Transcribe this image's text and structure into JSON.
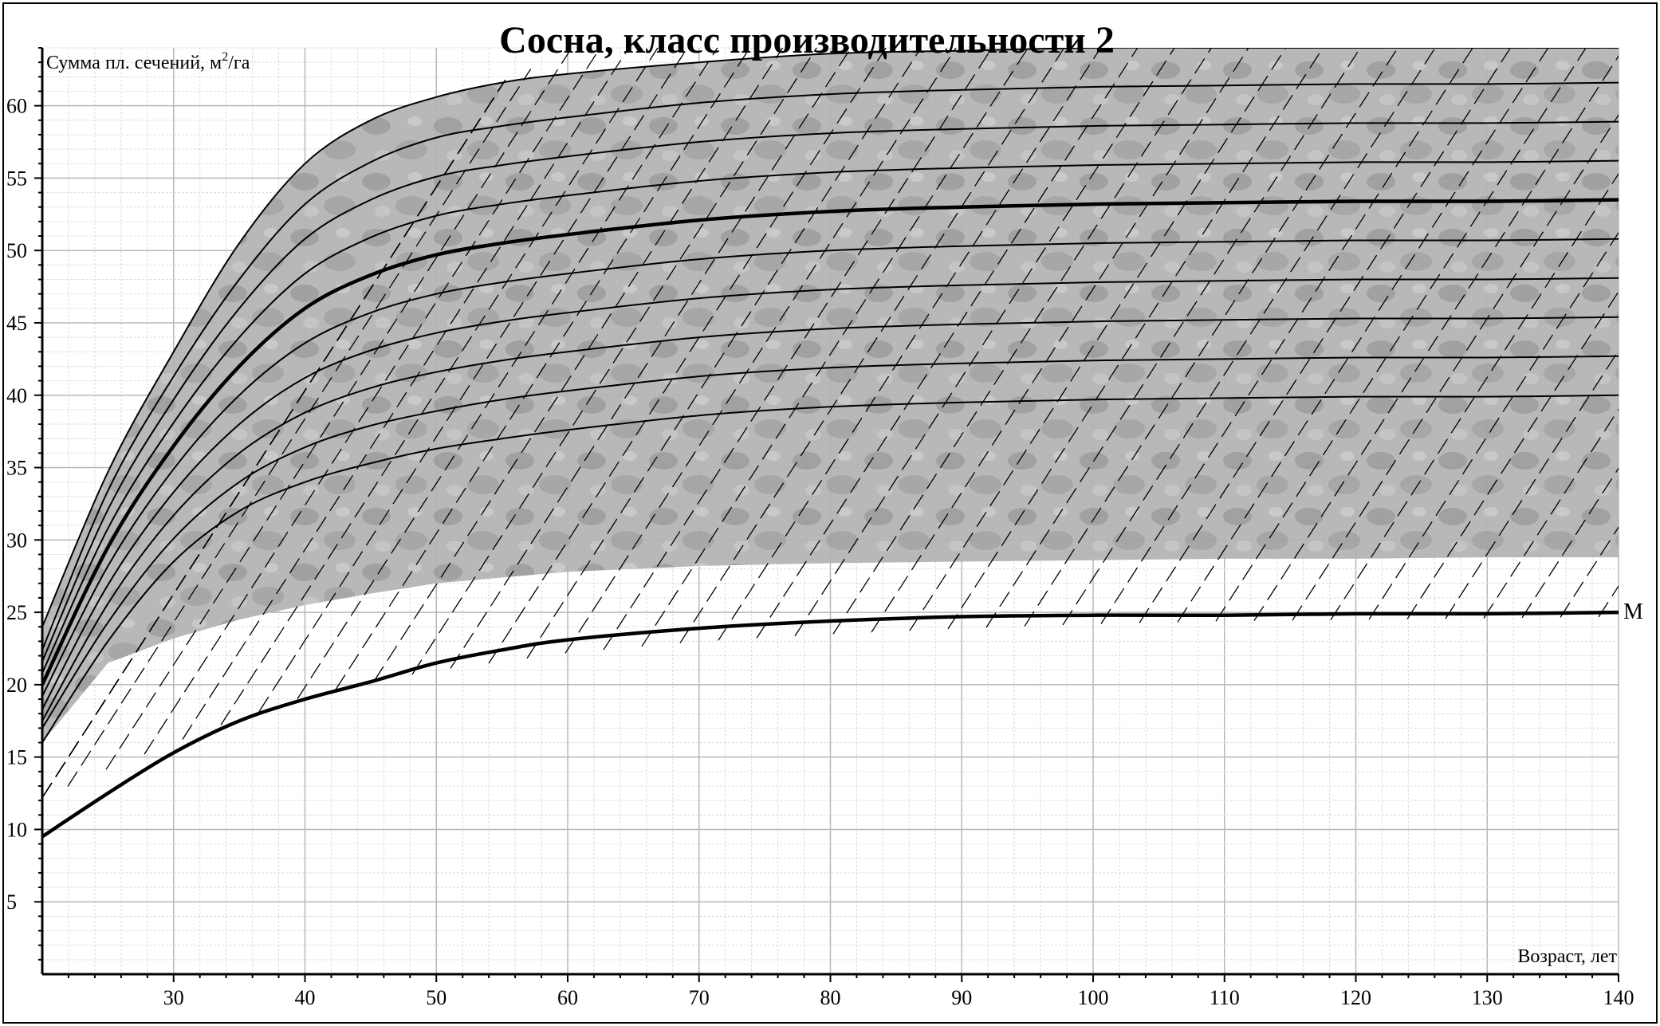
{
  "chart_data": {
    "type": "line",
    "title": "Сосна, класс производительности 2",
    "ylabel": "Сумма пл. сечений, м",
    "ylabel_sup": "2",
    "ylabel_suffix": "/га",
    "xlabel": "Возраст, лет",
    "xlim": [
      20,
      140
    ],
    "ylim": [
      0,
      64
    ],
    "x_ticks": [
      30,
      40,
      50,
      60,
      70,
      80,
      90,
      100,
      110,
      120,
      130,
      140
    ],
    "y_ticks": [
      5,
      10,
      15,
      20,
      25,
      30,
      35,
      40,
      45,
      50,
      55,
      60
    ],
    "grid": true,
    "x": [
      20,
      25,
      30,
      35,
      40,
      45,
      50,
      55,
      60,
      70,
      80,
      90,
      100,
      110,
      120,
      130,
      140
    ],
    "series": [
      {
        "values": [
          16.0,
          23.0,
          28.5,
          32.0,
          34.0,
          35.3,
          36.3,
          37.0,
          37.6,
          38.6,
          39.2,
          39.5,
          39.7,
          39.8,
          39.9,
          39.9,
          40.0
        ]
      },
      {
        "values": [
          17.0,
          24.3,
          30.1,
          34.0,
          36.4,
          37.9,
          38.9,
          39.7,
          40.3,
          41.3,
          41.9,
          42.2,
          42.4,
          42.5,
          42.6,
          42.6,
          42.7
        ]
      },
      {
        "values": [
          17.5,
          25.6,
          31.7,
          36.0,
          38.8,
          40.5,
          41.6,
          42.4,
          43.0,
          44.0,
          44.6,
          44.9,
          45.1,
          45.2,
          45.3,
          45.3,
          45.4
        ]
      },
      {
        "values": [
          18.3,
          26.9,
          33.3,
          38.0,
          41.2,
          43.1,
          44.3,
          45.1,
          45.7,
          46.7,
          47.3,
          47.6,
          47.8,
          47.9,
          48.0,
          48.0,
          48.1
        ]
      },
      {
        "values": [
          19.2,
          28.2,
          34.9,
          40.0,
          43.6,
          45.7,
          47.0,
          47.8,
          48.4,
          49.4,
          50.0,
          50.3,
          50.5,
          50.6,
          50.7,
          50.7,
          50.8
        ]
      },
      {
        "name": "",
        "values": [
          20.0,
          29.5,
          36.5,
          42.0,
          46.0,
          48.3,
          49.7,
          50.5,
          51.1,
          52.1,
          52.7,
          53.0,
          53.2,
          53.3,
          53.4,
          53.4,
          53.5
        ]
      },
      {
        "values": [
          20.8,
          30.8,
          38.1,
          44.0,
          48.4,
          50.9,
          52.4,
          53.2,
          53.8,
          54.8,
          55.4,
          55.7,
          55.9,
          56.0,
          56.1,
          56.1,
          56.2
        ]
      },
      {
        "values": [
          21.6,
          32.1,
          39.7,
          46.0,
          50.8,
          53.5,
          55.1,
          55.9,
          56.5,
          57.5,
          58.1,
          58.4,
          58.6,
          58.7,
          58.8,
          58.8,
          58.9
        ]
      },
      {
        "values": [
          22.4,
          33.4,
          41.3,
          48.0,
          53.2,
          56.1,
          57.8,
          58.6,
          59.2,
          60.2,
          60.8,
          61.1,
          61.3,
          61.4,
          61.5,
          61.5,
          61.6
        ]
      },
      {
        "name": "",
        "values": [
          24.0,
          34.7,
          43.0,
          50.5,
          56.0,
          59.0,
          60.6,
          61.6,
          62.2,
          63.0,
          63.6,
          63.8,
          64.0,
          64.0,
          64.0,
          64.0,
          64.0
        ]
      },
      {
        "name": "M",
        "values": [
          9.5,
          12.5,
          15.3,
          17.5,
          19.0,
          20.2,
          21.5,
          22.4,
          23.1,
          23.9,
          24.4,
          24.7,
          24.8,
          24.8,
          24.9,
          24.9,
          25.0
        ]
      }
    ],
    "shaded_band": {
      "lower": [
        16.0,
        21.5,
        23.2,
        24.5,
        25.5,
        26.3,
        27.0,
        27.4,
        27.8,
        28.2,
        28.4,
        28.5,
        28.6,
        28.7,
        28.7,
        28.8,
        28.8
      ],
      "upper": [
        24.0,
        34.7,
        43.0,
        50.5,
        56.0,
        59.0,
        60.6,
        61.6,
        62.2,
        63.0,
        63.6,
        63.8,
        64.0,
        64.0,
        64.0,
        64.0,
        64.0
      ]
    },
    "lower_boundary": [
      15.5,
      17.5,
      19.3,
      21.0,
      22.5,
      23.5,
      24.3,
      24.9,
      25.5,
      26.3,
      26.8,
      27.2,
      27.5,
      27.7,
      27.8,
      27.9,
      28.0
    ],
    "highlighted_series": [
      "M",
      5
    ],
    "colors": {
      "band_fill": "#b4b4b4",
      "band_mottle": "#9a9a9a",
      "grid": "#c8c8c8",
      "line": "#000000",
      "background": "#ffffff"
    }
  }
}
